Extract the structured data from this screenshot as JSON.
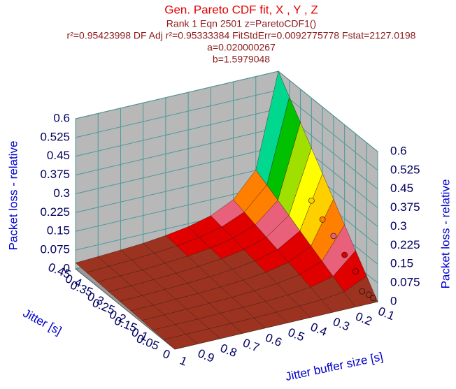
{
  "chart_data": {
    "type": "surface",
    "title": "Gen. Pareto CDF fit, X , Y , Z",
    "subtitle_lines": [
      "Rank 1  Eqn 2501  z=ParetoCDF1()",
      "r²=0.95423998  DF Adj r²=0.95333384  FitStdErr=0.0092775778  Fstat=2127.0198",
      "a=0.020000267",
      "b=1.5979048"
    ],
    "xlabel": "Jitter buffer size [s]",
    "ylabel": "Jitter [s]",
    "zlabel": "Packet loss - relative",
    "xlim": [
      0.1,
      1
    ],
    "ylim": [
      0,
      0.45
    ],
    "zlim": [
      0,
      0.6
    ],
    "xticks": [
      0.1,
      0.2,
      0.3,
      0.4,
      0.5,
      0.6,
      0.7,
      0.8,
      0.9,
      1
    ],
    "yticks": [
      0,
      0.05,
      0.1,
      0.15,
      0.2,
      0.25,
      0.3,
      0.35,
      0.4,
      0.45
    ],
    "zticks": [
      0,
      0.075,
      0.15,
      0.225,
      0.3,
      0.375,
      0.45,
      0.525,
      0.6
    ],
    "surface": {
      "x": [
        0.1,
        0.2,
        0.3,
        0.4,
        0.5,
        0.6,
        0.7,
        0.8,
        0.9,
        1
      ],
      "y": [
        0,
        0.05,
        0.1,
        0.15,
        0.2,
        0.25,
        0.3,
        0.35,
        0.4,
        0.45
      ],
      "z": [
        [
          0,
          0,
          0,
          0,
          0,
          0,
          0,
          0,
          0,
          0
        ],
        [
          0.067,
          0.025,
          0.014,
          0.01,
          0.007,
          0.005,
          0.004,
          0.004,
          0.003,
          0.003
        ],
        [
          0.133,
          0.051,
          0.029,
          0.019,
          0.014,
          0.011,
          0.009,
          0.007,
          0.006,
          0.005
        ],
        [
          0.2,
          0.076,
          0.043,
          0.029,
          0.021,
          0.016,
          0.013,
          0.011,
          0.009,
          0.008
        ],
        [
          0.267,
          0.101,
          0.057,
          0.038,
          0.028,
          0.022,
          0.017,
          0.015,
          0.012,
          0.011
        ],
        [
          0.333,
          0.126,
          0.072,
          0.048,
          0.035,
          0.027,
          0.022,
          0.018,
          0.015,
          0.013
        ],
        [
          0.4,
          0.152,
          0.086,
          0.057,
          0.042,
          0.033,
          0.026,
          0.022,
          0.018,
          0.016
        ],
        [
          0.467,
          0.177,
          0.1,
          0.067,
          0.049,
          0.038,
          0.031,
          0.025,
          0.022,
          0.019
        ],
        [
          0.533,
          0.202,
          0.115,
          0.077,
          0.056,
          0.043,
          0.035,
          0.029,
          0.025,
          0.021
        ],
        [
          0.6,
          0.227,
          0.129,
          0.086,
          0.063,
          0.049,
          0.039,
          0.033,
          0.028,
          0.024
        ]
      ]
    },
    "points": {
      "x": [
        0.1,
        0.1,
        0.12,
        0.1,
        0.1,
        0.1,
        0.1,
        0.1
      ],
      "y": [
        0.02,
        0.04,
        0.05,
        0.1,
        0.15,
        0.2,
        0.25,
        0.3
      ],
      "z": [
        0,
        0,
        0.01,
        0.05,
        0.08,
        0.12,
        0.15,
        0.19
      ]
    },
    "colormap": [
      "#9c3320",
      "#e00000",
      "#e8607a",
      "#ff8000",
      "#ffd000",
      "#ffff00",
      "#a0e000",
      "#00c000",
      "#00d890",
      "#00e0e0",
      "#40a0ff",
      "#0000ff",
      "#8060c0"
    ],
    "wall_color": "#b8b8b8",
    "grid_color": "#4a9a9a"
  }
}
